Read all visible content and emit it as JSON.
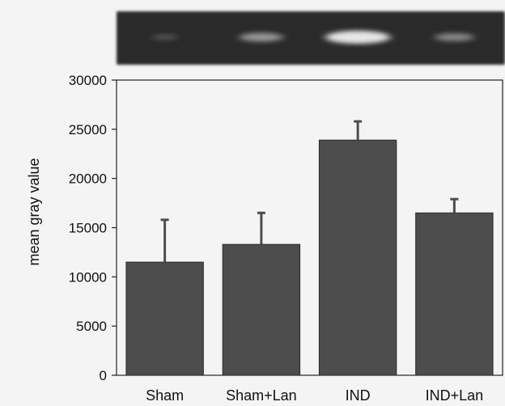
{
  "colors": {
    "background": "#f4f4f4",
    "bar": "#4d4d4d",
    "gel_background": "#2a2a2a",
    "band": "#e6e6e6"
  },
  "chart_data": {
    "type": "bar",
    "categories": [
      "Sham",
      "Sham+Lan",
      "IND",
      "IND+Lan"
    ],
    "values": [
      11500,
      13300,
      23900,
      16500
    ],
    "error_bars": [
      4300,
      3200,
      1900,
      1400
    ],
    "ylabel": "mean gray value",
    "xlabel": "",
    "ylim": [
      0,
      30000
    ],
    "yticks": [
      0,
      5000,
      10000,
      15000,
      20000,
      25000,
      30000
    ],
    "grid": false,
    "legend": "none",
    "band_intensities": [
      0.08,
      0.5,
      1.0,
      0.4
    ]
  }
}
